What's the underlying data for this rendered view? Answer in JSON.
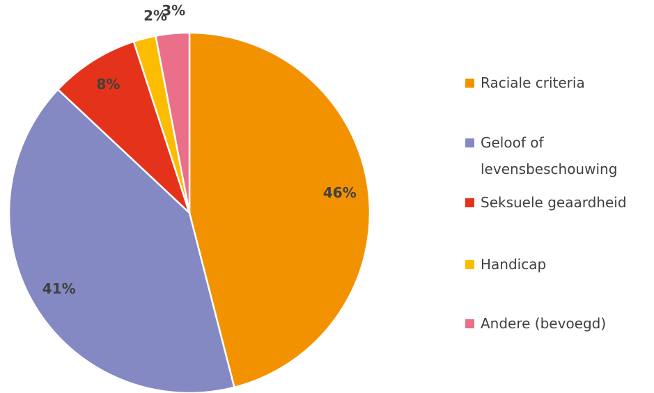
{
  "chart_data": {
    "type": "pie",
    "categories": [
      "Raciale criteria",
      "Geloof of levensbeschouwing",
      "Seksuele geaardheid",
      "Handicap",
      "Andere (bevoegd)"
    ],
    "values": [
      46,
      41,
      8,
      2,
      3
    ],
    "value_labels": [
      "46%",
      "41%",
      "8%",
      "2%",
      "3%"
    ],
    "colors": [
      "#f39200",
      "#8489c4",
      "#e5331b",
      "#fcbc00",
      "#ea6f89"
    ]
  }
}
